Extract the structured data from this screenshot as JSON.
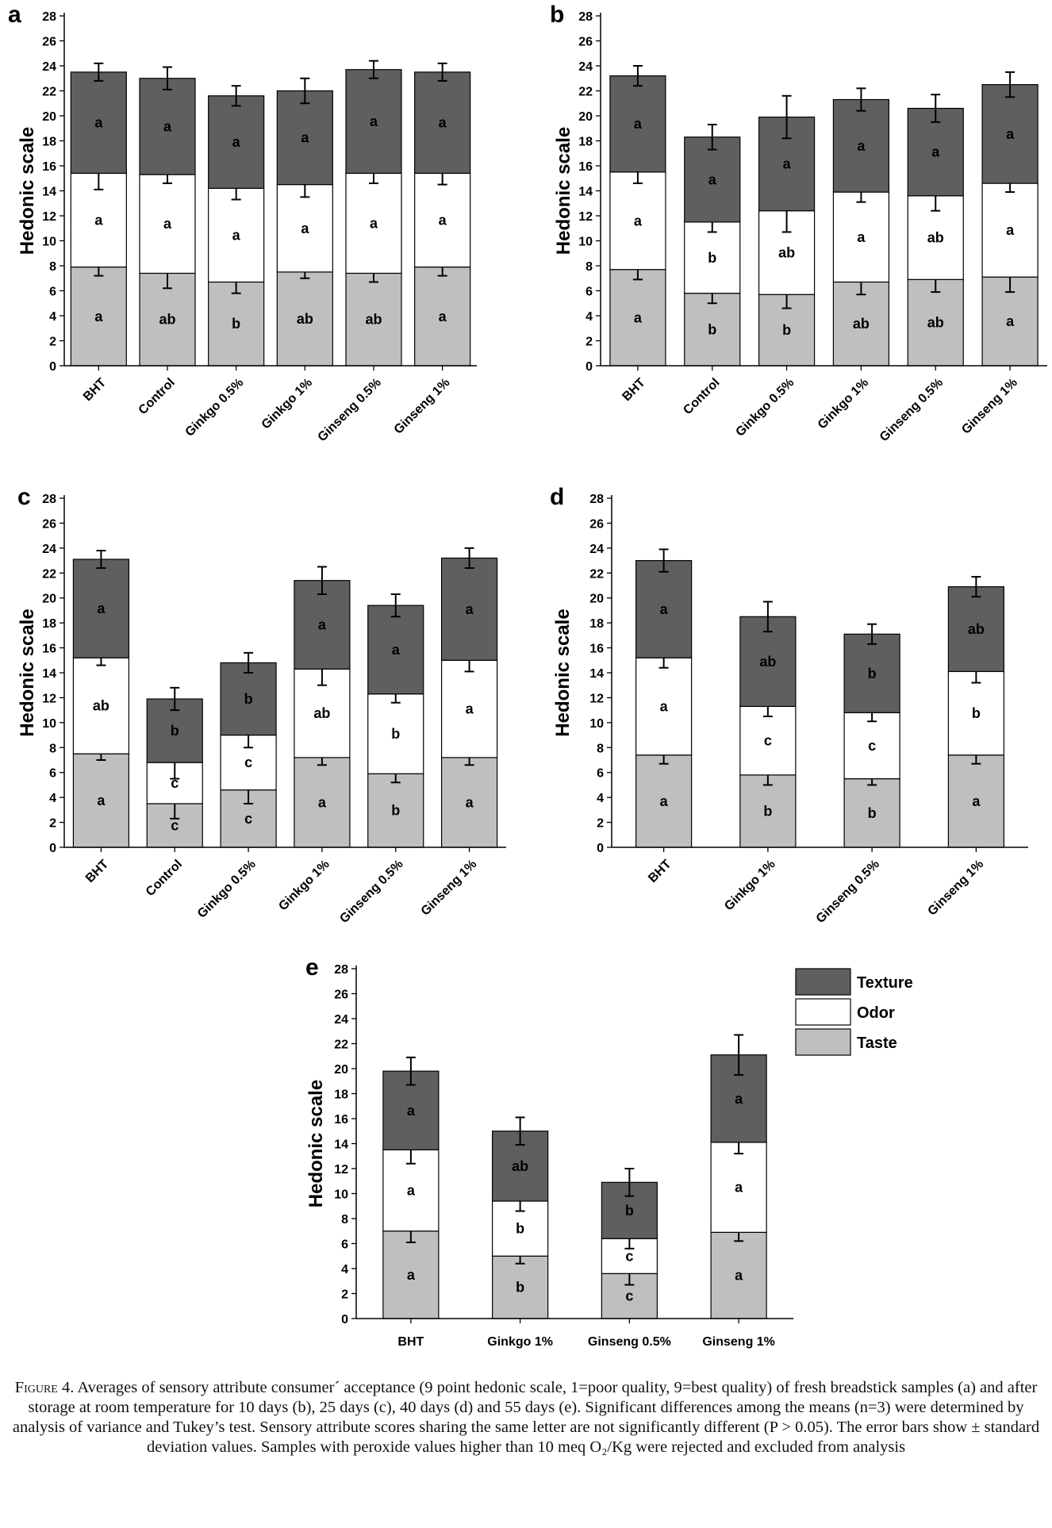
{
  "colors": {
    "texture": "#5f5f5f",
    "odor": "#ffffff",
    "taste": "#bfbfbf",
    "stroke": "#000000"
  },
  "legend": [
    {
      "key": "texture",
      "label": "Texture"
    },
    {
      "key": "odor",
      "label": "Odor"
    },
    {
      "key": "taste",
      "label": "Taste"
    }
  ],
  "chart_data": [
    {
      "panel": "a",
      "type": "bar",
      "stacked": true,
      "ylabel": "Hedonic scale",
      "ylim": [
        0,
        28
      ],
      "yticks": [
        0,
        2,
        4,
        6,
        8,
        10,
        12,
        14,
        16,
        18,
        20,
        22,
        24,
        26,
        28
      ],
      "categories": [
        "BHT",
        "Control",
        "Ginkgo 0.5%",
        "Ginkgo 1%",
        "Ginseng 0.5%",
        "Ginseng 1%"
      ],
      "series": [
        {
          "name": "Taste",
          "values": [
            7.9,
            7.4,
            6.7,
            7.5,
            7.4,
            7.9
          ],
          "sd": [
            0.7,
            1.2,
            0.9,
            0.5,
            0.7,
            0.7
          ],
          "letters": [
            "a",
            "ab",
            "b",
            "ab",
            "ab",
            "a"
          ]
        },
        {
          "name": "Odor",
          "values": [
            7.5,
            7.9,
            7.5,
            7.0,
            8.0,
            7.5
          ],
          "sd": [
            1.3,
            0.7,
            0.9,
            1.0,
            0.8,
            0.9
          ],
          "letters": [
            "a",
            "a",
            "a",
            "a",
            "a",
            "a"
          ]
        },
        {
          "name": "Texture",
          "values": [
            8.1,
            7.7,
            7.4,
            7.5,
            8.3,
            8.1
          ],
          "sd": [
            0.7,
            0.9,
            0.8,
            1.0,
            0.7,
            0.7
          ],
          "letters": [
            "a",
            "a",
            "a",
            "a",
            "a",
            "a"
          ]
        }
      ]
    },
    {
      "panel": "b",
      "type": "bar",
      "stacked": true,
      "ylabel": "Hedonic scale",
      "ylim": [
        0,
        28
      ],
      "yticks": [
        0,
        2,
        4,
        6,
        8,
        10,
        12,
        14,
        16,
        18,
        20,
        22,
        24,
        26,
        28
      ],
      "categories": [
        "BHT",
        "Control",
        "Ginkgo 0.5%",
        "Ginkgo 1%",
        "Ginseng 0.5%",
        "Ginseng 1%"
      ],
      "series": [
        {
          "name": "Taste",
          "values": [
            7.7,
            5.8,
            5.7,
            6.7,
            6.9,
            7.1
          ],
          "sd": [
            0.8,
            0.8,
            1.1,
            1.0,
            1.0,
            1.2
          ],
          "letters": [
            "a",
            "b",
            "b",
            "ab",
            "ab",
            "a"
          ]
        },
        {
          "name": "Odor",
          "values": [
            7.8,
            5.7,
            6.7,
            7.2,
            6.7,
            7.5
          ],
          "sd": [
            0.9,
            0.8,
            1.7,
            0.8,
            1.2,
            0.7
          ],
          "letters": [
            "a",
            "b",
            "ab",
            "a",
            "ab",
            "a"
          ]
        },
        {
          "name": "Texture",
          "values": [
            7.7,
            6.8,
            7.5,
            7.4,
            7.0,
            7.9
          ],
          "sd": [
            0.8,
            1.0,
            1.7,
            0.9,
            1.1,
            1.0
          ],
          "letters": [
            "a",
            "a",
            "a",
            "a",
            "a",
            "a"
          ]
        }
      ]
    },
    {
      "panel": "c",
      "type": "bar",
      "stacked": true,
      "ylabel": "Hedonic scale",
      "ylim": [
        0,
        28
      ],
      "yticks": [
        0,
        2,
        4,
        6,
        8,
        10,
        12,
        14,
        16,
        18,
        20,
        22,
        24,
        26,
        28
      ],
      "categories": [
        "BHT",
        "Control",
        "Ginkgo 0.5%",
        "Ginkgo 1%",
        "Ginseng 0.5%",
        "Ginseng 1%"
      ],
      "series": [
        {
          "name": "Taste",
          "values": [
            7.5,
            3.5,
            4.6,
            7.2,
            5.9,
            7.2
          ],
          "sd": [
            0.5,
            1.2,
            1.1,
            0.6,
            0.7,
            0.6
          ],
          "letters": [
            "a",
            "c",
            "c",
            "a",
            "b",
            "a"
          ]
        },
        {
          "name": "Odor",
          "values": [
            7.7,
            3.3,
            4.4,
            7.1,
            6.4,
            7.8
          ],
          "sd": [
            0.6,
            1.3,
            1.0,
            1.3,
            0.7,
            0.9
          ],
          "letters": [
            "ab",
            "c",
            "c",
            "ab",
            "b",
            "a"
          ]
        },
        {
          "name": "Texture",
          "values": [
            7.9,
            5.1,
            5.8,
            7.1,
            7.1,
            8.2
          ],
          "sd": [
            0.7,
            0.9,
            0.8,
            1.1,
            0.9,
            0.8
          ],
          "letters": [
            "a",
            "b",
            "b",
            "a",
            "a",
            "a"
          ]
        }
      ]
    },
    {
      "panel": "d",
      "type": "bar",
      "stacked": true,
      "ylabel": "Hedonic scale",
      "ylim": [
        0,
        28
      ],
      "yticks": [
        0,
        2,
        4,
        6,
        8,
        10,
        12,
        14,
        16,
        18,
        20,
        22,
        24,
        26,
        28
      ],
      "categories": [
        "BHT",
        "Ginkgo 1%",
        "Ginseng 0.5%",
        "Ginseng 1%"
      ],
      "series": [
        {
          "name": "Taste",
          "values": [
            7.4,
            5.8,
            5.5,
            7.4
          ],
          "sd": [
            0.7,
            0.8,
            0.5,
            0.7
          ],
          "letters": [
            "a",
            "b",
            "b",
            "a"
          ]
        },
        {
          "name": "Odor",
          "values": [
            7.8,
            5.5,
            5.3,
            6.7
          ],
          "sd": [
            0.8,
            0.8,
            0.7,
            0.9
          ],
          "letters": [
            "a",
            "c",
            "c",
            "b"
          ]
        },
        {
          "name": "Texture",
          "values": [
            7.8,
            7.2,
            6.3,
            6.8
          ],
          "sd": [
            0.9,
            1.2,
            0.8,
            0.8
          ],
          "letters": [
            "a",
            "ab",
            "b",
            "ab"
          ]
        }
      ]
    },
    {
      "panel": "e",
      "type": "bar",
      "stacked": true,
      "ylabel": "Hedonic scale",
      "ylim": [
        0,
        28
      ],
      "yticks": [
        0,
        2,
        4,
        6,
        8,
        10,
        12,
        14,
        16,
        18,
        20,
        22,
        24,
        26,
        28
      ],
      "categories": [
        "BHT",
        "Ginkgo 1%",
        "Ginseng 0.5%",
        "Ginseng 1%"
      ],
      "series": [
        {
          "name": "Taste",
          "values": [
            7.0,
            5.0,
            3.6,
            6.9
          ],
          "sd": [
            0.9,
            0.6,
            0.9,
            0.7
          ],
          "letters": [
            "a",
            "b",
            "c",
            "a"
          ]
        },
        {
          "name": "Odor",
          "values": [
            6.5,
            4.4,
            2.8,
            7.2
          ],
          "sd": [
            1.1,
            0.8,
            0.8,
            0.9
          ],
          "letters": [
            "a",
            "b",
            "c",
            "a"
          ]
        },
        {
          "name": "Texture",
          "values": [
            6.3,
            5.6,
            4.5,
            7.0
          ],
          "sd": [
            1.1,
            1.1,
            1.1,
            1.6
          ],
          "letters": [
            "a",
            "ab",
            "b",
            "a"
          ]
        }
      ]
    }
  ],
  "caption": {
    "label": "Figure 4.",
    "text": " Averages of sensory attribute consumer´ acceptance (9 point hedonic scale, 1=poor quality, 9=best quality) of fresh breadstick samples (a) and after storage at room temperature for 10 days (b), 25 days (c), 40 days (d) and 55 days (e). Significant differences among the means (n=3) were determined by analysis of variance and Tukey’s test. Sensory attribute scores sharing the same letter are not significantly different (P > 0.05). The error bars show ± standard deviation values. Samples with peroxide values higher than 10 meq O₂/Kg were rejected and excluded from analysis"
  }
}
